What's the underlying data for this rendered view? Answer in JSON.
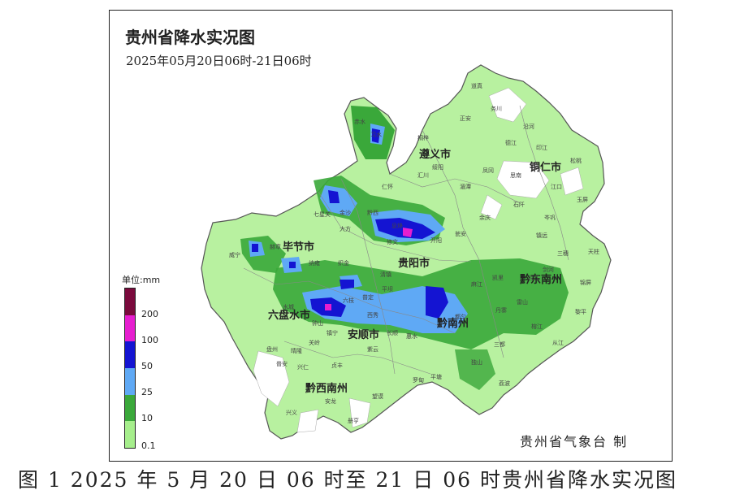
{
  "page_top_cut": "",
  "map": {
    "title": "贵州省降水实况图",
    "subtitle": "2025年05月20日06时-21日06时",
    "credit": "贵州省气象台 制",
    "cities": [
      "遵义市",
      "铜仁市",
      "毕节市",
      "贵阳市",
      "黔东南州",
      "六盘水市",
      "安顺市",
      "黔南州",
      "黔西南州"
    ],
    "counties": [
      "道真",
      "务川",
      "正安",
      "沿河",
      "桐梓",
      "德江",
      "印江",
      "江口",
      "松桃",
      "凤冈",
      "思南",
      "湄潭",
      "绥阳",
      "汇川",
      "仁怀",
      "赤水",
      "习水",
      "金沙",
      "黔西",
      "大方",
      "七星关",
      "织金",
      "纳雍",
      "赫章",
      "威宁",
      "水城",
      "钟山",
      "盘州",
      "六枝",
      "普定",
      "西秀",
      "镇宁",
      "关岭",
      "平坝",
      "清镇",
      "修文",
      "开阳",
      "息烽",
      "瓮安",
      "余庆",
      "石阡",
      "镇远",
      "岑巩",
      "玉屏",
      "三穗",
      "天柱",
      "锦屏",
      "黎平",
      "从江",
      "榕江",
      "雷山",
      "台江",
      "剑河",
      "凯里",
      "麻江",
      "丹寨",
      "都匀",
      "独山",
      "三都",
      "荔波",
      "平塘",
      "罗甸",
      "惠水",
      "长顺",
      "紫云",
      "望谟",
      "册亨",
      "贞丰",
      "安龙",
      "兴义",
      "兴仁",
      "普安",
      "晴隆",
      "兴仁",
      "福泉",
      "贵定",
      "龙里",
      "黄平",
      "施秉",
      "万山",
      "碧江",
      "石阡",
      "余庆"
    ],
    "legend": {
      "unit": "单位:mm",
      "labels": [
        "200",
        "100",
        "50",
        "25",
        "10",
        "0.1"
      ],
      "colors": [
        "#7a0a3c",
        "#e61ecf",
        "#1414d2",
        "#5fa9f5",
        "#3aa83a",
        "#a6ee8c"
      ]
    }
  },
  "caption": "图 1   2025 年 5 月 20 日 06 时至 21 日 06 时贵州省降水实况图"
}
